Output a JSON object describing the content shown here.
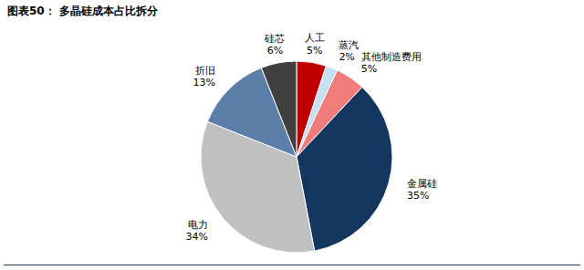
{
  "chart_data": {
    "type": "pie",
    "title": "图表50： 多晶硅成本占比拆分",
    "categories": [
      "人工",
      "蒸汽",
      "其他制造费用",
      "金属硅",
      "电力",
      "折旧",
      "硅芯"
    ],
    "values": [
      5,
      2,
      5,
      35,
      34,
      13,
      6
    ],
    "value_labels": [
      "5%",
      "2%",
      "5%",
      "35%",
      "34%",
      "13%",
      "6%"
    ],
    "colors": [
      "#c00000",
      "#c6e0f2",
      "#f27c7c",
      "#14365f",
      "#c0c0c0",
      "#5b7fa8",
      "#404040"
    ],
    "data_labels": true
  }
}
